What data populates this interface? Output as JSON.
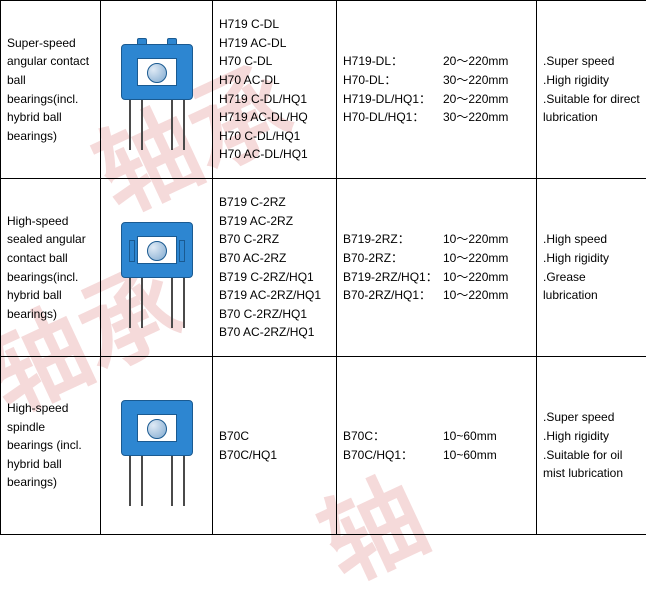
{
  "rows": [
    {
      "name": "Super-speed angular contact ball bearings(incl. hybrid ball bearings)",
      "icon": "open",
      "models": [
        "H719 C-DL",
        "H719 AC-DL",
        "H70 C-DL",
        "H70 AC-DL",
        "H719 C-DL/HQ1",
        "H719 AC-DL/HQ",
        "H70 C-DL/HQ1",
        "H70 AC-DL/HQ1"
      ],
      "specs": [
        {
          "label": "H719-DL：",
          "value": "20～220mm"
        },
        {
          "label": "H70-DL：",
          "value": "30～220mm"
        },
        {
          "label": "H719-DL/HQ1：",
          "value": "20～220mm"
        },
        {
          "label": "H70-DL/HQ1：",
          "value": "30～220mm"
        }
      ],
      "features": [
        ".Super speed",
        ".High rigidity",
        ".Suitable for direct lubrication"
      ]
    },
    {
      "name": "High-speed sealed angular contact ball bearings(incl. hybrid ball bearings)",
      "icon": "sealed",
      "models": [
        "B719 C-2RZ",
        "B719 AC-2RZ",
        "B70 C-2RZ",
        "B70 AC-2RZ",
        "B719 C-2RZ/HQ1",
        "B719 AC-2RZ/HQ1",
        "B70 C-2RZ/HQ1",
        "B70 AC-2RZ/HQ1"
      ],
      "specs": [
        {
          "label": "B719-2RZ：",
          "value": "10～220mm"
        },
        {
          "label": "B70-2RZ：",
          "value": "10～220mm"
        },
        {
          "label": "B719-2RZ/HQ1：",
          "value": "10～220mm"
        },
        {
          "label": "B70-2RZ/HQ1：",
          "value": "10～220mm"
        }
      ],
      "features": [
        ".High speed",
        ".High rigidity",
        ".Grease lubrication"
      ]
    },
    {
      "name": "High-speed spindle bearings (incl. hybrid ball bearings)",
      "icon": "spindle",
      "models": [
        "B70C",
        "B70C/HQ1"
      ],
      "specs": [
        {
          "label": "B70C：",
          "value": "10~60mm"
        },
        {
          "label": "B70C/HQ1：",
          "value": "10~60mm"
        }
      ],
      "features": [
        ".Super speed",
        ".High rigidity",
        ".Suitable for oil mist lubrication"
      ]
    }
  ]
}
